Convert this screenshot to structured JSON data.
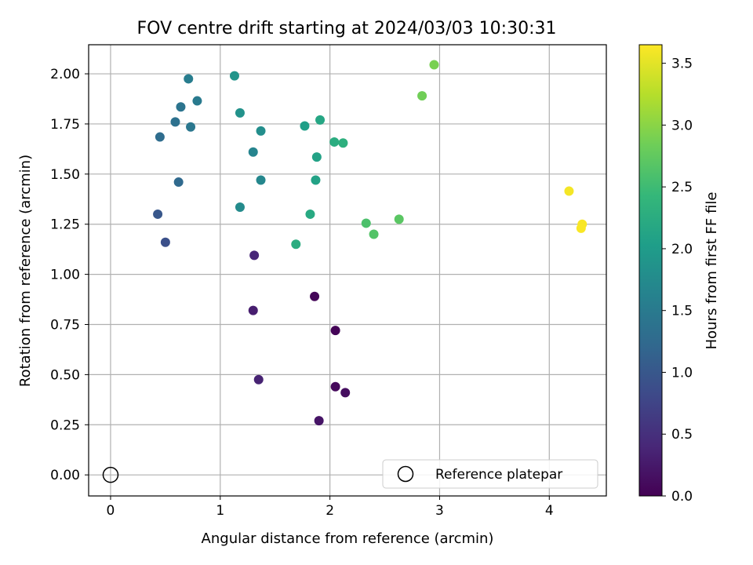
{
  "chart_data": {
    "type": "scatter",
    "title": "FOV centre drift starting at 2024/03/03 10:30:31",
    "xlabel": "Angular distance from reference (arcmin)",
    "ylabel": "Rotation from reference (arcmin)",
    "xlim": [
      -0.2,
      4.52
    ],
    "ylim": [
      -0.105,
      2.145
    ],
    "xticks": [
      0,
      1,
      2,
      3,
      4
    ],
    "xtick_labels": [
      "0",
      "1",
      "2",
      "3",
      "4"
    ],
    "yticks": [
      0,
      0.25,
      0.5,
      0.75,
      1.0,
      1.25,
      1.5,
      1.75,
      2.0
    ],
    "ytick_labels": [
      "0.00",
      "0.25",
      "0.50",
      "0.75",
      "1.00",
      "1.25",
      "1.50",
      "1.75",
      "2.00"
    ],
    "grid": true,
    "colormap": "viridis",
    "colorbar": {
      "label": "Hours from first FF file",
      "range": [
        0,
        3.65
      ],
      "ticks": [
        0,
        0.5,
        1.0,
        1.5,
        2.0,
        2.5,
        3.0,
        3.5
      ],
      "tick_labels": [
        "0.0",
        "0.5",
        "1.0",
        "1.5",
        "2.0",
        "2.5",
        "3.0",
        "3.5"
      ]
    },
    "legend": {
      "entries": [
        "Reference platepar"
      ],
      "position": "lower right"
    },
    "reference_point": {
      "x": 0,
      "y": 0,
      "name": "Reference platepar",
      "marker": "open-circle"
    },
    "points": [
      {
        "x": 2.05,
        "y": 0.72,
        "c": 0.03
      },
      {
        "x": 1.86,
        "y": 0.89,
        "c": 0.05
      },
      {
        "x": 2.05,
        "y": 0.44,
        "c": 0.08
      },
      {
        "x": 2.14,
        "y": 0.41,
        "c": 0.12
      },
      {
        "x": 1.9,
        "y": 0.27,
        "c": 0.2
      },
      {
        "x": 1.3,
        "y": 0.82,
        "c": 0.3
      },
      {
        "x": 1.35,
        "y": 0.475,
        "c": 0.35
      },
      {
        "x": 1.31,
        "y": 1.095,
        "c": 0.4
      },
      {
        "x": 0.5,
        "y": 1.16,
        "c": 0.9
      },
      {
        "x": 0.43,
        "y": 1.3,
        "c": 1.0
      },
      {
        "x": 0.62,
        "y": 1.46,
        "c": 1.25
      },
      {
        "x": 0.45,
        "y": 1.685,
        "c": 1.3
      },
      {
        "x": 0.59,
        "y": 1.76,
        "c": 1.35
      },
      {
        "x": 0.64,
        "y": 1.835,
        "c": 1.4
      },
      {
        "x": 0.73,
        "y": 1.735,
        "c": 1.45
      },
      {
        "x": 0.79,
        "y": 1.865,
        "c": 1.5
      },
      {
        "x": 0.71,
        "y": 1.975,
        "c": 1.55
      },
      {
        "x": 1.3,
        "y": 1.61,
        "c": 1.65
      },
      {
        "x": 1.37,
        "y": 1.47,
        "c": 1.7
      },
      {
        "x": 1.18,
        "y": 1.335,
        "c": 1.75
      },
      {
        "x": 1.37,
        "y": 1.715,
        "c": 1.8
      },
      {
        "x": 1.18,
        "y": 1.805,
        "c": 1.85
      },
      {
        "x": 1.13,
        "y": 1.99,
        "c": 1.9
      },
      {
        "x": 1.77,
        "y": 1.74,
        "c": 2.05
      },
      {
        "x": 1.87,
        "y": 1.47,
        "c": 2.1
      },
      {
        "x": 1.88,
        "y": 1.585,
        "c": 2.1
      },
      {
        "x": 1.91,
        "y": 1.77,
        "c": 2.15
      },
      {
        "x": 1.82,
        "y": 1.3,
        "c": 2.2
      },
      {
        "x": 1.69,
        "y": 1.15,
        "c": 2.25
      },
      {
        "x": 2.04,
        "y": 1.66,
        "c": 2.25
      },
      {
        "x": 2.12,
        "y": 1.655,
        "c": 2.3
      },
      {
        "x": 2.33,
        "y": 1.255,
        "c": 2.6
      },
      {
        "x": 2.4,
        "y": 1.2,
        "c": 2.65
      },
      {
        "x": 2.63,
        "y": 1.275,
        "c": 2.7
      },
      {
        "x": 2.84,
        "y": 1.89,
        "c": 2.85
      },
      {
        "x": 2.95,
        "y": 2.045,
        "c": 2.9
      },
      {
        "x": 4.18,
        "y": 1.415,
        "c": 3.6
      },
      {
        "x": 4.3,
        "y": 1.25,
        "c": 3.62
      },
      {
        "x": 4.29,
        "y": 1.23,
        "c": 3.63
      }
    ]
  }
}
